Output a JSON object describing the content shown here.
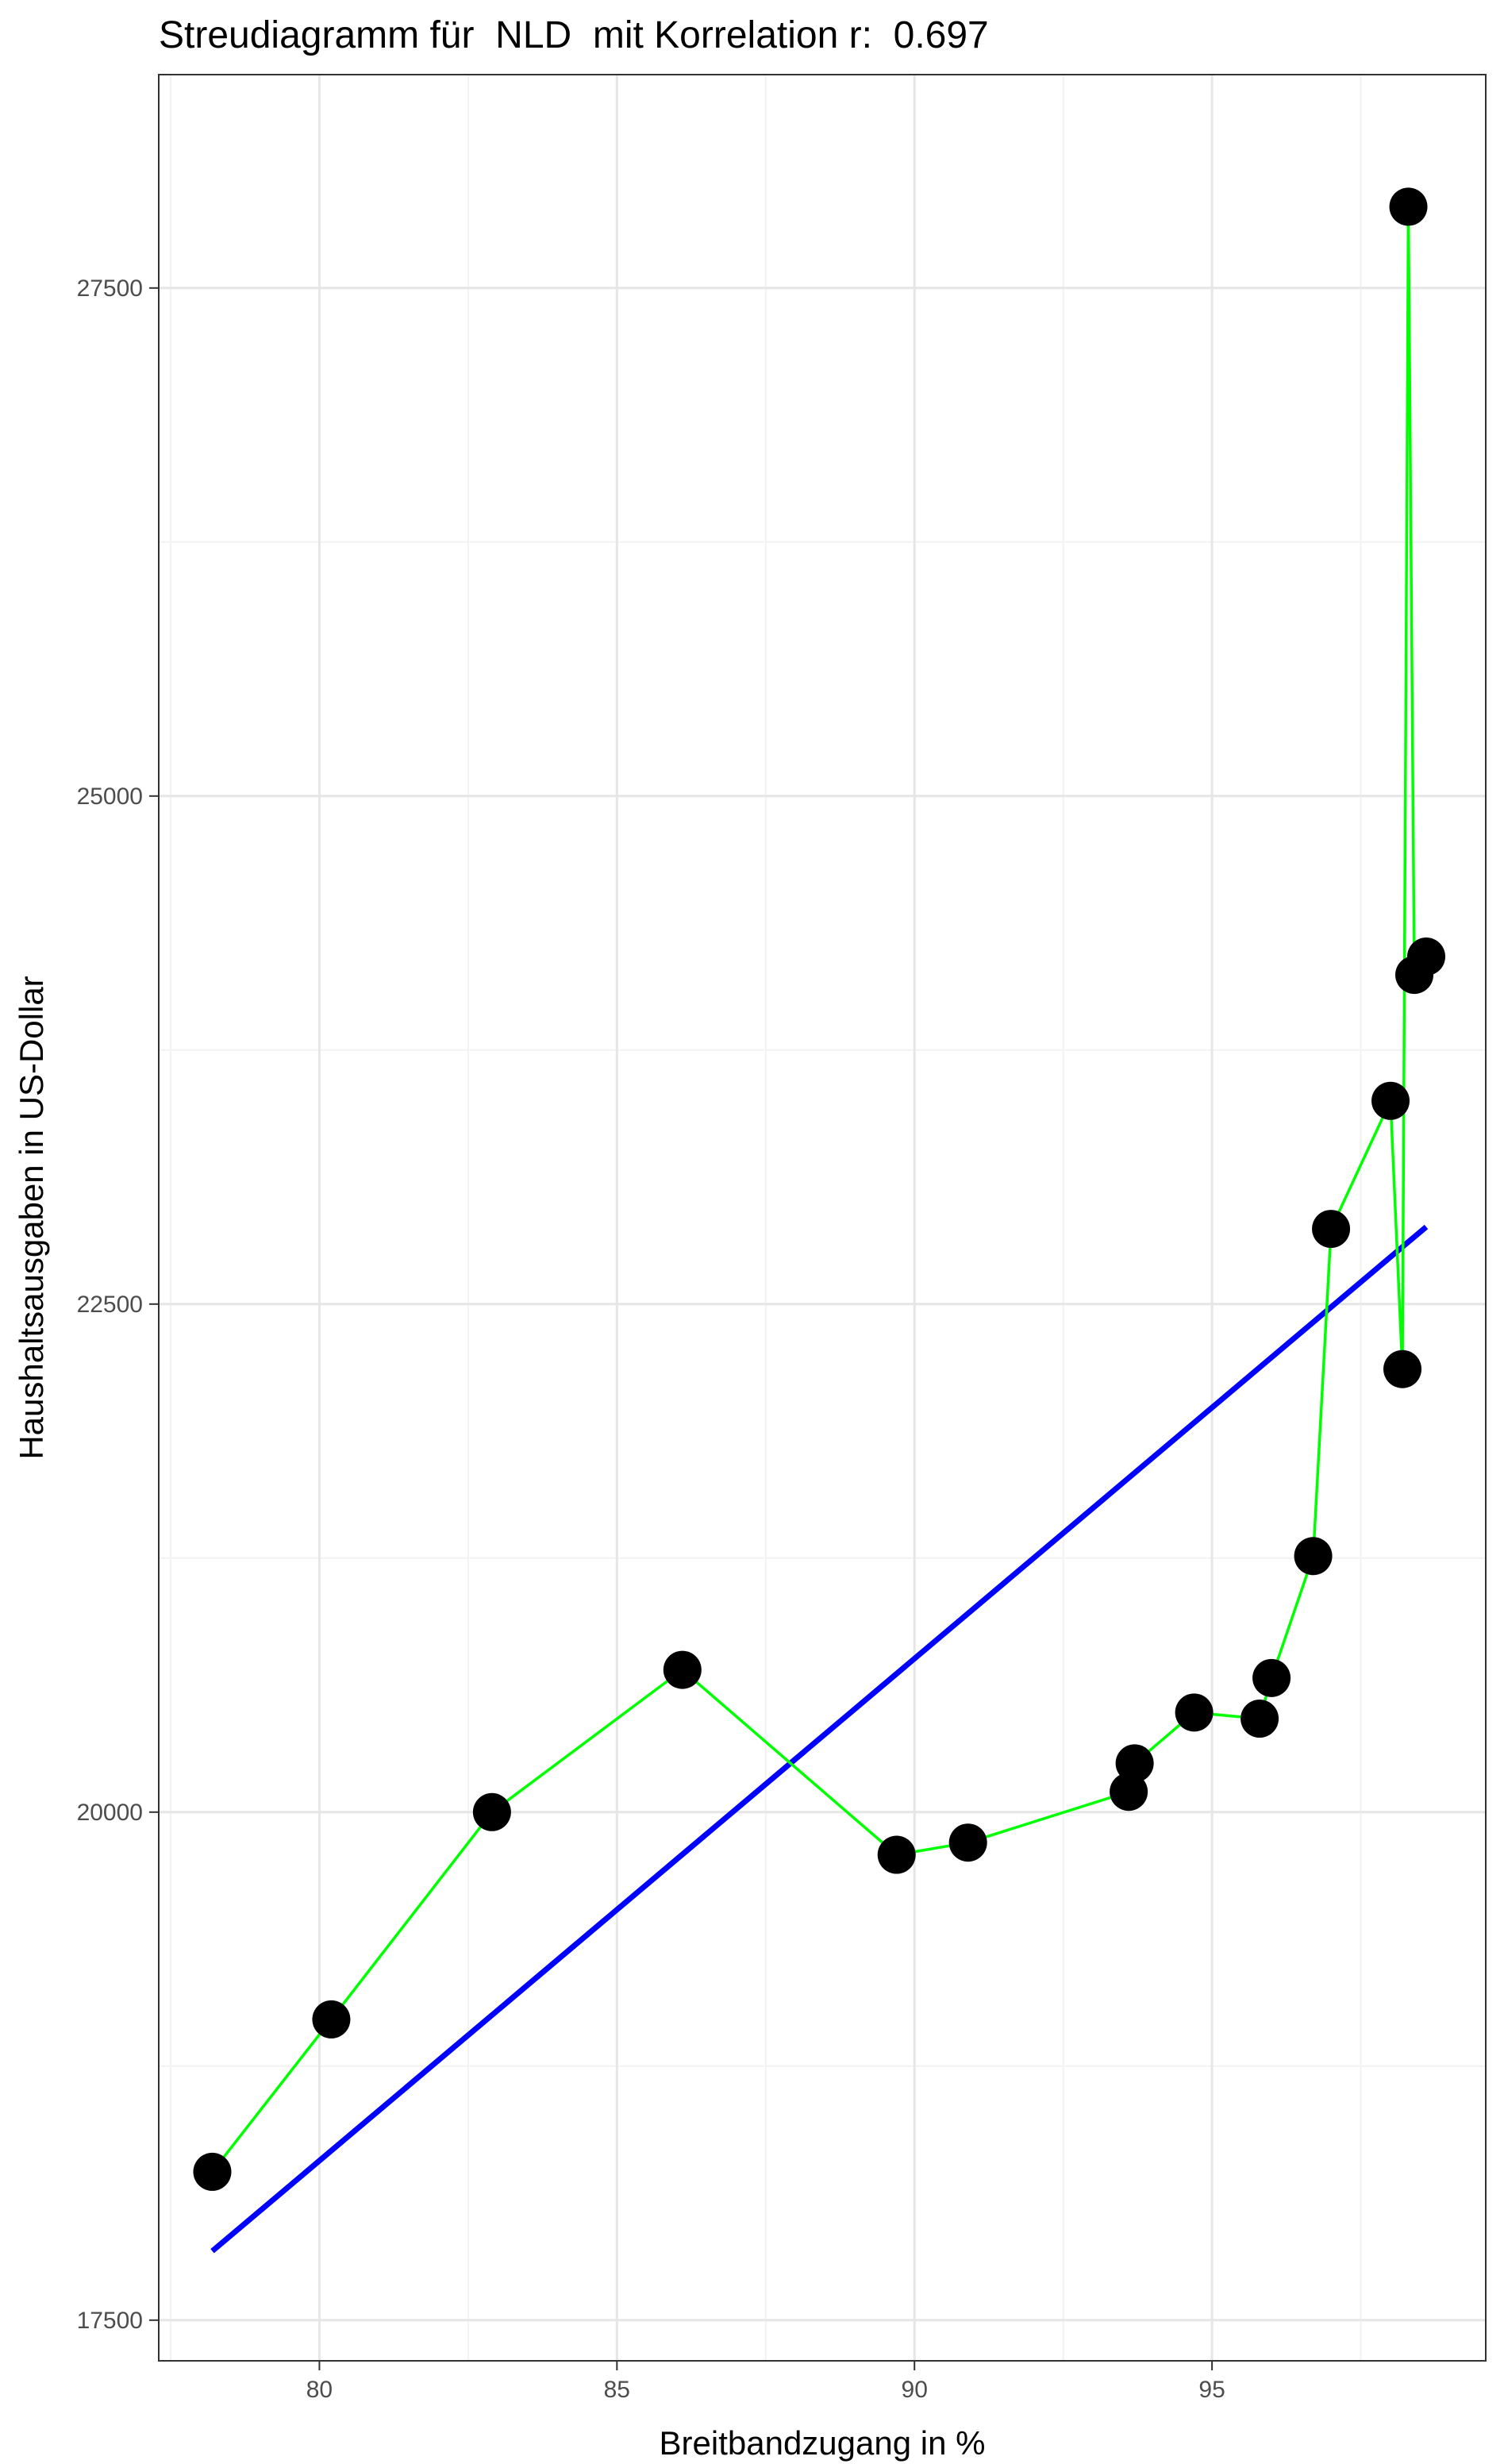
{
  "chart_data": {
    "type": "scatter",
    "title": "Streudiagramm für  NLD  mit Korrelation r:  0.697",
    "xlabel": "Breitbandzugang in %",
    "ylabel": "Haushaltsausgaben in US-Dollar",
    "xlim": [
      77.3,
      99.6
    ],
    "ylim": [
      17300,
      28550
    ],
    "x_ticks": [
      80,
      85,
      90,
      95
    ],
    "x_tick_labels": [
      "80",
      "85",
      "90",
      "95"
    ],
    "y_ticks": [
      17500,
      20000,
      22500,
      25000,
      27500
    ],
    "y_tick_labels": [
      "17500",
      "20000",
      "22500",
      "25000",
      "27500"
    ],
    "grid": true,
    "legend": "none",
    "points": [
      {
        "x": 78.2,
        "y": 18230
      },
      {
        "x": 80.2,
        "y": 18980
      },
      {
        "x": 82.9,
        "y": 20000
      },
      {
        "x": 86.1,
        "y": 20700
      },
      {
        "x": 89.7,
        "y": 19790
      },
      {
        "x": 90.9,
        "y": 19850
      },
      {
        "x": 93.6,
        "y": 20100
      },
      {
        "x": 93.7,
        "y": 20240
      },
      {
        "x": 94.7,
        "y": 20490
      },
      {
        "x": 95.8,
        "y": 20460
      },
      {
        "x": 96.0,
        "y": 20660
      },
      {
        "x": 96.7,
        "y": 21260
      },
      {
        "x": 97.0,
        "y": 22870
      },
      {
        "x": 98.0,
        "y": 23500
      },
      {
        "x": 98.2,
        "y": 22180
      },
      {
        "x": 98.3,
        "y": 27900
      },
      {
        "x": 98.4,
        "y": 24120
      },
      {
        "x": 98.6,
        "y": 24210
      }
    ],
    "connect_path": [
      {
        "x": 78.2,
        "y": 18230
      },
      {
        "x": 80.2,
        "y": 18980
      },
      {
        "x": 82.9,
        "y": 20000
      },
      {
        "x": 86.1,
        "y": 20700
      },
      {
        "x": 89.7,
        "y": 19790
      },
      {
        "x": 90.9,
        "y": 19850
      },
      {
        "x": 93.6,
        "y": 20100
      },
      {
        "x": 93.7,
        "y": 20240
      },
      {
        "x": 94.7,
        "y": 20490
      },
      {
        "x": 95.8,
        "y": 20460
      },
      {
        "x": 96.0,
        "y": 20660
      },
      {
        "x": 96.7,
        "y": 21260
      },
      {
        "x": 97.0,
        "y": 22870
      },
      {
        "x": 98.0,
        "y": 23500
      },
      {
        "x": 98.2,
        "y": 22180
      },
      {
        "x": 98.3,
        "y": 27900
      },
      {
        "x": 98.4,
        "y": 24120
      },
      {
        "x": 98.6,
        "y": 24210
      }
    ],
    "trend_line": {
      "x": [
        78.2,
        98.6
      ],
      "y": [
        17840,
        22880
      ]
    },
    "colors": {
      "points": "#000000",
      "connect_line": "#00ff00",
      "trend_line": "#0000ff",
      "panel_border": "#333333",
      "grid_major": "#e6e6e6",
      "grid_minor": "#f2f2f2"
    }
  }
}
